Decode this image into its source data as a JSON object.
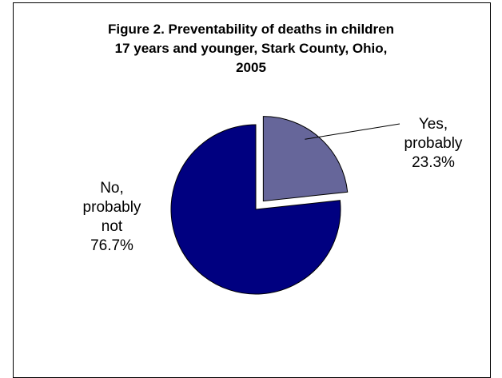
{
  "chart_data": {
    "type": "pie",
    "title_lines": [
      "Figure 2.  Preventability of deaths in children",
      "17 years and younger, Stark County, Ohio,",
      "2005"
    ],
    "slices": [
      {
        "label_lines": [
          "Yes,",
          "probably",
          "23.3%"
        ],
        "value": 23.3,
        "color": "#66669a",
        "exploded": true
      },
      {
        "label_lines": [
          "No,",
          "probably",
          "not",
          "76.7%"
        ],
        "value": 76.7,
        "color": "#000080",
        "exploded": false
      }
    ]
  }
}
